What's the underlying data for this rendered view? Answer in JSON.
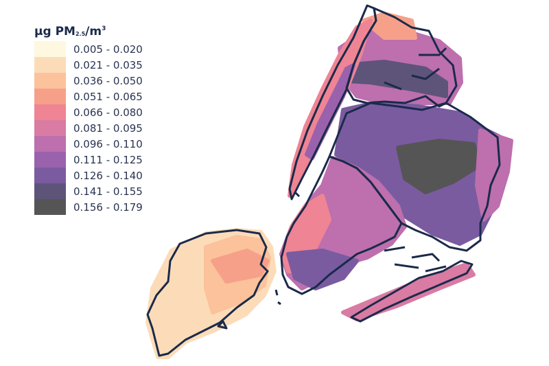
{
  "legend": {
    "title_unit": "µg PM",
    "title_sub": "2.5",
    "title_tail": "/m",
    "title_sup": "3",
    "classes": [
      {
        "label": "0.005 - 0.020",
        "color": "#fdf8df"
      },
      {
        "label": "0.021 - 0.035",
        "color": "#fcdcb8"
      },
      {
        "label": "0.036 - 0.050",
        "color": "#fbc29b"
      },
      {
        "label": "0.051 - 0.065",
        "color": "#f6a08a"
      },
      {
        "label": "0.066 - 0.080",
        "color": "#ee8494"
      },
      {
        "label": "0.081 - 0.095",
        "color": "#d97ba3"
      },
      {
        "label": "0.096 - 0.110",
        "color": "#bd6fae"
      },
      {
        "label": "0.111 - 0.125",
        "color": "#9a62ad"
      },
      {
        "label": "0.126 - 0.140",
        "color": "#7a5ba0"
      },
      {
        "label": "0.141 - 0.155",
        "color": "#5e5479"
      },
      {
        "label": "0.156 - 0.179",
        "color": "#555555"
      }
    ]
  },
  "map": {
    "boundary_color": "#1b2a4a"
  }
}
